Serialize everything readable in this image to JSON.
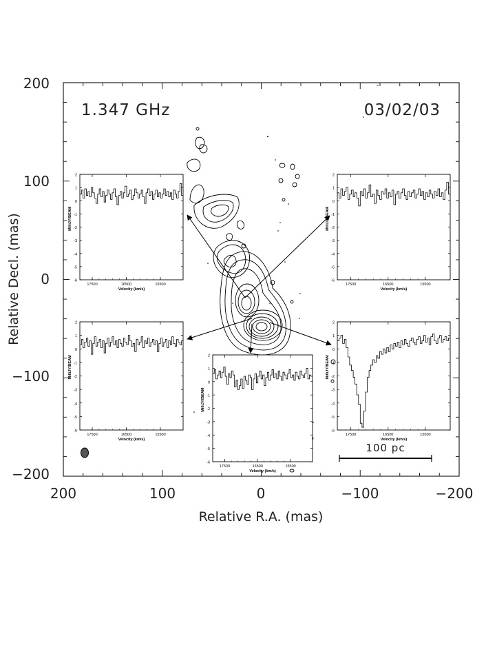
{
  "chart_data": {
    "type": "scatter",
    "frequency_label": "1.347 GHz",
    "date_label": "03/02/03",
    "xlabel": "Relative R.A. (mas)",
    "ylabel": "Relative Decl. (mas)",
    "xlim": [
      200,
      -200
    ],
    "ylim": [
      -200,
      200
    ],
    "xticks": [
      "200",
      "100",
      "0",
      "−100",
      "−200"
    ],
    "yticks": [
      "200",
      "100",
      "0",
      "−100",
      "−200"
    ],
    "scalebar_label": "100 pc",
    "grid": false,
    "colors": {
      "ink": "#000000",
      "axis": "#222222"
    },
    "insets": {
      "ylabel": "MilliJY/BEAM",
      "xlabel": "Velocity (km/s)",
      "xticks": [
        "17500",
        "16500",
        "15500"
      ],
      "yticks": [
        "2",
        "1",
        "0",
        "-1",
        "-2",
        "-3",
        "-4",
        "-5",
        "-6"
      ],
      "spectra": [
        {
          "id": "upper-left",
          "values": [
            0.5,
            0.8,
            0.2,
            0.9,
            0.4,
            0.7,
            0.3,
            1.0,
            0.6,
            0.2,
            -0.2,
            0.5,
            0.9,
            0.3,
            0.7,
            -0.1,
            0.4,
            0.8,
            0.5,
            0.1,
            0.6,
            0.9,
            0.3,
            -0.3,
            0.4,
            0.7,
            0.2,
            0.6,
            1.1,
            0.3,
            0.5,
            0.8,
            0.1,
            0.4,
            0.9,
            0.6,
            0.2,
            0.5,
            0.8,
            0.3,
            -0.2,
            0.6,
            0.9,
            0.4,
            0.7,
            0.1,
            0.5,
            0.8,
            0.3,
            0.6,
            0.2,
            0.5,
            0.9,
            0.4,
            0.7,
            0.3,
            0.6,
            0.1,
            0.8,
            0.5,
            0.2,
            0.7,
            1.3,
            0.4
          ]
        },
        {
          "id": "upper-right",
          "values": [
            0.6,
            0.2,
            0.9,
            0.4,
            0.7,
            1.0,
            0.1,
            0.5,
            0.8,
            0.3,
            0.6,
            0.2,
            -0.4,
            0.7,
            0.4,
            0.9,
            0.2,
            0.6,
            1.2,
            0.3,
            0.5,
            -0.2,
            0.8,
            0.4,
            0.1,
            0.7,
            0.5,
            0.9,
            0.2,
            0.6,
            0.3,
            0.8,
            -0.3,
            0.5,
            0.7,
            0.2,
            0.6,
            0.9,
            0.4,
            0.1,
            0.7,
            0.3,
            0.6,
            0.8,
            0.2,
            0.5,
            0.9,
            0.4,
            0.7,
            0.1,
            0.6,
            0.3,
            0.8,
            0.5,
            0.2,
            0.7,
            0.4,
            0.9,
            0.3,
            0.6,
            0.1,
            0.8,
            1.4,
            0.5
          ]
        },
        {
          "id": "lower-left",
          "values": [
            0.3,
            0.7,
            0.1,
            0.5,
            0.8,
            0.2,
            0.6,
            -0.4,
            0.4,
            0.9,
            0.2,
            0.5,
            0.7,
            0.1,
            0.6,
            -0.3,
            0.4,
            0.8,
            0.2,
            0.5,
            0.9,
            0.3,
            0.6,
            0.1,
            0.7,
            0.4,
            0.2,
            0.8,
            0.5,
            0.3,
            1.0,
            0.6,
            0.2,
            0.4,
            -0.2,
            0.7,
            0.3,
            0.5,
            0.9,
            0.1,
            0.6,
            0.4,
            0.8,
            0.2,
            0.5,
            0.7,
            0.3,
            0.6,
            -0.2,
            0.4,
            0.8,
            0.2,
            0.5,
            0.7,
            0.1,
            0.6,
            0.3,
            0.9,
            0.4,
            0.2,
            0.7,
            0.5,
            0.3,
            0.6
          ]
        },
        {
          "id": "lower-center",
          "values": [
            0.6,
            0.9,
            0.2,
            0.5,
            0.8,
            0.3,
            0.7,
            1.1,
            0.4,
            -0.2,
            0.6,
            0.3,
            0.8,
            0.5,
            -0.4,
            0.1,
            -0.6,
            -0.3,
            0.2,
            -0.5,
            0.4,
            0.1,
            -0.2,
            0.5,
            0.3,
            -0.6,
            0.2,
            0.6,
            -0.1,
            0.4,
            0.8,
            0.2,
            0.5,
            -0.3,
            0.3,
            0.7,
            0.1,
            0.5,
            0.9,
            0.3,
            0.6,
            0.2,
            0.8,
            0.4,
            0.1,
            0.7,
            0.5,
            0.2,
            0.6,
            0.9,
            0.3,
            0.5,
            0.1,
            0.7,
            0.4,
            0.2,
            0.8,
            0.5,
            0.3,
            0.6,
            1.0,
            0.2,
            0.5,
            0.4
          ]
        },
        {
          "id": "lower-right",
          "values": [
            0.6,
            0.8,
            1.0,
            0.4,
            0.7,
            0.1,
            -0.6,
            -1.2,
            -1.6,
            -2.1,
            -2.6,
            -3.4,
            -4.1,
            -5.5,
            -5.8,
            -4.6,
            -3.2,
            -2.1,
            -1.6,
            -1.2,
            -0.8,
            -1.0,
            -0.5,
            -0.7,
            -0.2,
            -0.4,
            0.0,
            -0.3,
            0.1,
            -0.2,
            0.3,
            0.0,
            0.4,
            0.2,
            0.5,
            0.1,
            0.6,
            0.3,
            0.7,
            0.4,
            0.2,
            0.6,
            0.8,
            0.5,
            0.3,
            0.7,
            0.9,
            0.4,
            0.6,
            1.0,
            0.5,
            0.8,
            0.3,
            0.9,
            1.1,
            0.6,
            0.4,
            0.8,
            1.0,
            0.5,
            0.7,
            0.9,
            0.6,
            0.8
          ]
        }
      ]
    }
  }
}
